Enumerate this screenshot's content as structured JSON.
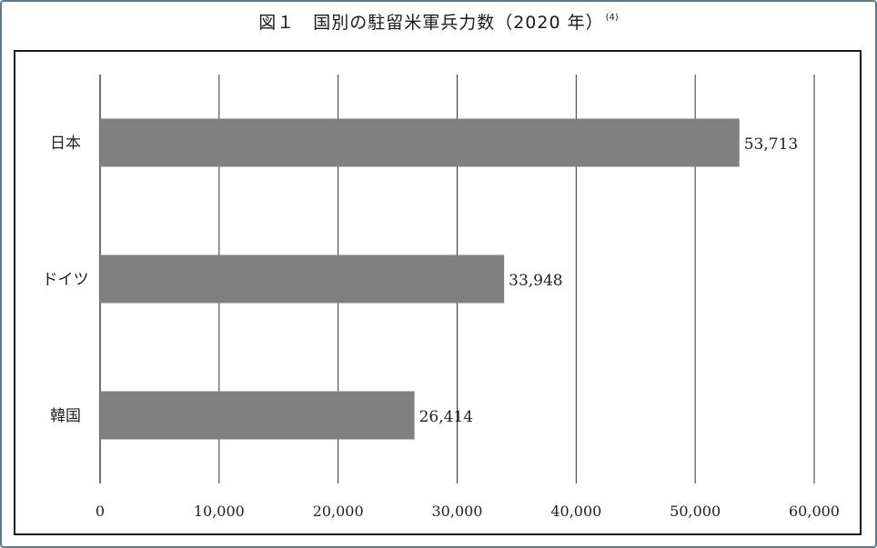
{
  "figure": {
    "title": "図１　国別の駐留米軍兵力数（2020 年）",
    "footnote_ref": "(4)"
  },
  "chart_data": {
    "type": "bar",
    "orientation": "horizontal",
    "categories": [
      "日本",
      "ドイツ",
      "韓国"
    ],
    "values": [
      53713,
      33948,
      26414
    ],
    "data_labels": [
      "53,713",
      "33,948",
      "26,414"
    ],
    "xlim": [
      0,
      60000
    ],
    "x_ticks": [
      0,
      10000,
      20000,
      30000,
      40000,
      50000,
      60000
    ],
    "x_tick_labels": [
      "0",
      "10,000",
      "20,000",
      "30,000",
      "40,000",
      "50,000",
      "60,000"
    ],
    "bar_color": "#808080",
    "grid": true
  }
}
